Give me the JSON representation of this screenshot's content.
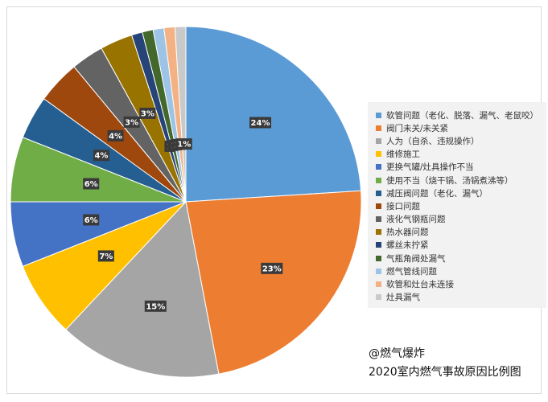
{
  "chart_data": {
    "type": "pie",
    "slices": [
      {
        "label": "软管问题（老化、脱落、漏气、老鼠咬）",
        "value": 24,
        "data_label": "24%",
        "color": "#5b9bd5"
      },
      {
        "label": "阀门未关/未关紧",
        "value": 23,
        "data_label": "23%",
        "color": "#ed7d31"
      },
      {
        "label": "人为（自杀、违规操作）",
        "value": 15,
        "data_label": "15%",
        "color": "#a5a5a5"
      },
      {
        "label": "维修施工",
        "value": 7,
        "data_label": "7%",
        "color": "#ffc000"
      },
      {
        "label": "更换气罐/灶具操作不当",
        "value": 6,
        "data_label": "6%",
        "color": "#4472c4"
      },
      {
        "label": "使用不当（烧干锅、汤锅煮沸等）",
        "value": 6,
        "data_label": "6%",
        "color": "#70ad47"
      },
      {
        "label": "减压阀问题（老化、漏气）",
        "value": 4,
        "data_label": "4%",
        "color": "#255e91"
      },
      {
        "label": "接口问题",
        "value": 4,
        "data_label": "4%",
        "color": "#9e480e"
      },
      {
        "label": "液化气钢瓶问题",
        "value": 3,
        "data_label": "3%",
        "color": "#636363"
      },
      {
        "label": "热水器问题",
        "value": 3,
        "data_label": "3%",
        "color": "#997300"
      },
      {
        "label": "螺丝未拧紧",
        "value": 1,
        "data_label": "1",
        "color": "#264478"
      },
      {
        "label": "气瓶角阀处漏气",
        "value": 1,
        "data_label": "1",
        "color": "#43682b"
      },
      {
        "label": "燃气管线问题",
        "value": 1,
        "data_label": "1",
        "color": "#9dc3e6"
      },
      {
        "label": "软管和灶台未连接",
        "value": 1,
        "data_label": "1",
        "color": "#f4b183"
      },
      {
        "label": "灶具漏气",
        "value": 1,
        "data_label": "1%",
        "color": "#c9c9c9"
      }
    ],
    "legend_position": "right"
  },
  "caption": {
    "source": "@燃气爆炸",
    "title": "2020室内燃气事故原因比例图"
  }
}
